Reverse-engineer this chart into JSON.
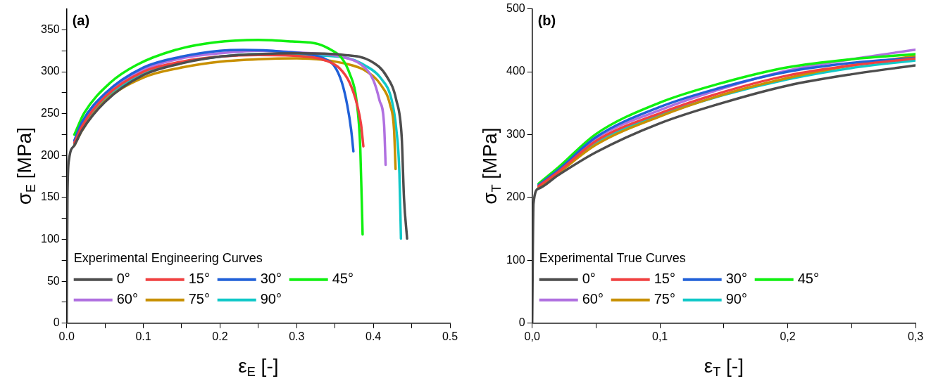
{
  "chart_data": [
    {
      "type": "line",
      "annotations": [
        {
          "text": "(a)"
        }
      ],
      "xlabel": "ε$_{E}$ [-]",
      "ylabel": "σ$_{E}$ [MPa]",
      "legend_title": "Experimental Engineering Curves",
      "legend": "bottom left",
      "grid": false,
      "marker": "none",
      "line_style": "solid",
      "xlim": [
        0,
        0.5
      ],
      "xticks": [
        {
          "value": 0,
          "label": "0.0"
        },
        {
          "value": 0.05,
          "label": null
        },
        {
          "value": 0.1,
          "label": "0.1"
        },
        {
          "value": 0.15,
          "label": null
        },
        {
          "value": 0.2,
          "label": "0.2"
        },
        {
          "value": 0.25,
          "label": null
        },
        {
          "value": 0.3,
          "label": "0.3"
        },
        {
          "value": 0.35,
          "label": null
        },
        {
          "value": 0.4,
          "label": "0.4"
        },
        {
          "value": 0.45,
          "label": null
        },
        {
          "value": 0.5,
          "label": "0.5"
        }
      ],
      "ylim": [
        0,
        375
      ],
      "yticks": [
        0,
        {
          "value": 25,
          "label": null
        },
        50,
        {
          "value": 75,
          "label": null
        },
        100,
        {
          "value": 125,
          "label": null
        },
        150,
        {
          "value": 175,
          "label": null
        },
        200,
        {
          "value": 225,
          "label": null
        },
        250,
        {
          "value": 275,
          "label": null
        },
        300,
        {
          "value": 325,
          "label": null
        },
        350
      ],
      "series": [
        {
          "name": "0°",
          "color": "#4d4d4d",
          "x": [
            0,
            0.001,
            0.003,
            0.01,
            0.02,
            0.05,
            0.1,
            0.15,
            0.2,
            0.25,
            0.3,
            0.362,
            0.396,
            0.417,
            0.43,
            0.437,
            0.44,
            0.444
          ],
          "values": [
            0,
            150,
            195,
            212,
            230,
            264,
            296,
            310,
            318,
            321,
            322,
            320,
            313,
            295,
            266,
            222,
            149,
            101
          ]
        },
        {
          "name": "15°",
          "color": "#f04040",
          "x": [
            0.01,
            0.02,
            0.05,
            0.1,
            0.15,
            0.2,
            0.25,
            0.3,
            0.339,
            0.356,
            0.369,
            0.379,
            0.384,
            0.387
          ],
          "values": [
            215,
            235,
            270,
            300,
            312,
            318,
            320,
            319,
            313,
            304,
            287,
            260,
            237,
            211
          ]
        },
        {
          "name": "30°",
          "color": "#2060d8",
          "x": [
            0.01,
            0.02,
            0.05,
            0.1,
            0.15,
            0.2,
            0.23,
            0.28,
            0.335,
            0.349,
            0.359,
            0.366,
            0.371,
            0.374
          ],
          "values": [
            218,
            240,
            274,
            305,
            318,
            325,
            326,
            324,
            316,
            307,
            287,
            260,
            231,
            205
          ]
        },
        {
          "name": "45°",
          "color": "#10f010",
          "x": [
            0.01,
            0.023,
            0.057,
            0.091,
            0.142,
            0.193,
            0.25,
            0.294,
            0.328,
            0.345,
            0.359,
            0.369,
            0.378,
            0.383,
            0.386
          ],
          "values": [
            225,
            251,
            287,
            308,
            326,
            335,
            338,
            336,
            333,
            326,
            316,
            298,
            266,
            208,
            106
          ]
        },
        {
          "name": "60°",
          "color": "#b070e0",
          "x": [
            0.01,
            0.02,
            0.05,
            0.1,
            0.15,
            0.2,
            0.25,
            0.3,
            0.362,
            0.386,
            0.4,
            0.408,
            0.414,
            0.416
          ],
          "values": [
            217,
            238,
            272,
            302,
            316,
            322,
            325,
            323,
            317,
            307,
            290,
            266,
            237,
            189
          ]
        },
        {
          "name": "75°",
          "color": "#c89000",
          "x": [
            0.01,
            0.02,
            0.05,
            0.1,
            0.15,
            0.2,
            0.25,
            0.3,
            0.362,
            0.39,
            0.41,
            0.422,
            0.427,
            0.429
          ],
          "values": [
            212,
            230,
            265,
            293,
            305,
            312,
            315,
            316,
            310,
            301,
            284,
            260,
            231,
            184
          ]
        },
        {
          "name": "90°",
          "color": "#10c8c8",
          "x": [
            0.01,
            0.02,
            0.05,
            0.1,
            0.15,
            0.2,
            0.25,
            0.3,
            0.362,
            0.39,
            0.41,
            0.424,
            0.43,
            0.434,
            0.436
          ],
          "values": [
            214,
            234,
            268,
            297,
            311,
            318,
            321,
            320,
            317,
            307,
            292,
            266,
            231,
            179,
            101
          ]
        }
      ]
    },
    {
      "type": "line",
      "annotations": [
        {
          "text": "(b)"
        }
      ],
      "xlabel": "ε$_{T}$ [-]",
      "ylabel": "σ$_{T}$ [MPa]",
      "legend_title": "Experimental True Curves",
      "legend": "bottom left",
      "grid": false,
      "marker": "none",
      "line_style": "solid",
      "xlim": [
        0,
        0.3
      ],
      "xticks": [
        {
          "value": 0,
          "label": "0,0"
        },
        {
          "value": 0.05,
          "label": null
        },
        {
          "value": 0.1,
          "label": "0,1"
        },
        {
          "value": 0.15,
          "label": null
        },
        {
          "value": 0.2,
          "label": "0,2"
        },
        {
          "value": 0.25,
          "label": null
        },
        {
          "value": 0.3,
          "label": "0,3"
        }
      ],
      "ylim": [
        0,
        500
      ],
      "yticks": [
        0,
        100,
        200,
        300,
        400,
        500
      ],
      "x": [
        0,
        0.001,
        0.005,
        0.02,
        0.05,
        0.1,
        0.15,
        0.2,
        0.25,
        0.3
      ],
      "series": [
        {
          "name": "0°",
          "color": "#4d4d4d",
          "values": [
            0,
            190,
            214,
            235,
            272,
            318,
            351,
            378,
            396,
            410
          ]
        },
        {
          "name": "15°",
          "color": "#f04040",
          "values": [
            null,
            null,
            218,
            240,
            290,
            334,
            368,
            394,
            410,
            421
          ]
        },
        {
          "name": "30°",
          "color": "#2060d8",
          "values": [
            null,
            null,
            220,
            243,
            296,
            344,
            376,
            400,
            414,
            422
          ]
        },
        {
          "name": "45°",
          "color": "#10f010",
          "values": [
            null,
            null,
            222,
            247,
            301,
            351,
            383,
            407,
            420,
            428
          ]
        },
        {
          "name": "60°",
          "color": "#b070e0",
          "values": [
            null,
            null,
            219,
            242,
            294,
            339,
            374,
            402,
            420,
            435
          ]
        },
        {
          "name": "75°",
          "color": "#c89000",
          "values": [
            null,
            null,
            216,
            238,
            284,
            329,
            364,
            390,
            410,
            425
          ]
        },
        {
          "name": "90°",
          "color": "#10c8c8",
          "values": [
            null,
            null,
            217,
            240,
            288,
            331,
            363,
            388,
            406,
            418
          ]
        }
      ]
    }
  ]
}
